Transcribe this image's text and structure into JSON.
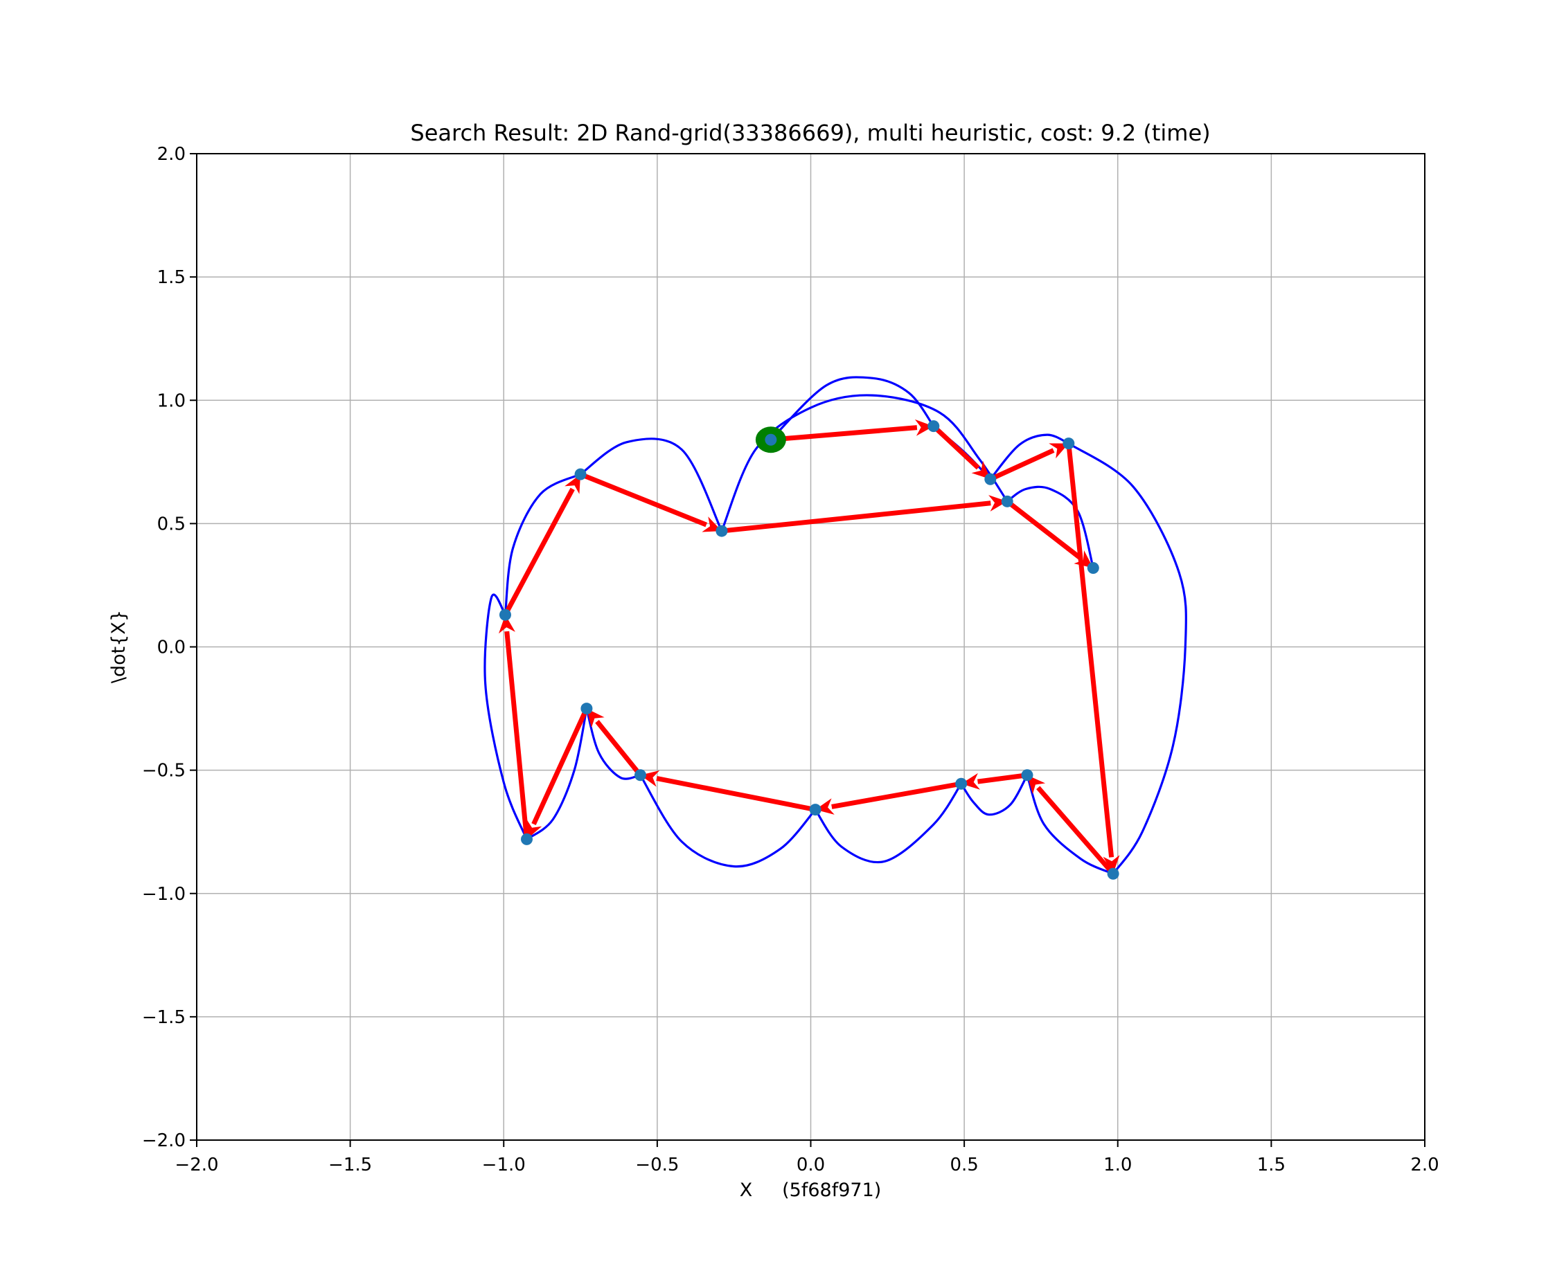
{
  "chart_data": {
    "type": "scatter",
    "title": "Search Result: 2D Rand-grid(33386669), multi heuristic, cost: 9.2 (time)",
    "xlabel": "X     (5f68f971)",
    "ylabel": "\\dot{X}",
    "xlim": [
      -2.0,
      2.0
    ],
    "ylim": [
      -2.0,
      2.0
    ],
    "xticks": [
      -2.0,
      -1.5,
      -1.0,
      -0.5,
      0.0,
      0.5,
      1.0,
      1.5,
      2.0
    ],
    "yticks": [
      -2.0,
      -1.5,
      -1.0,
      -0.5,
      0.0,
      0.5,
      1.0,
      1.5,
      2.0
    ],
    "xtick_labels": [
      "−2.0",
      "−1.5",
      "−1.0",
      "−0.5",
      "0.0",
      "0.5",
      "1.0",
      "1.5",
      "2.0"
    ],
    "ytick_labels": [
      "−2.0",
      "−1.5",
      "−1.0",
      "−0.5",
      "0.0",
      "0.5",
      "1.0",
      "1.5",
      "2.0"
    ],
    "grid": true,
    "colors": {
      "nodes": "#1f77b4",
      "edges": "#ff0000",
      "trajectories": "#0000ff",
      "start": "#008000",
      "grid": "#b0b0b0"
    },
    "start": {
      "x": -0.13,
      "y": 0.84
    },
    "nodes": [
      {
        "x": -0.13,
        "y": 0.84
      },
      {
        "x": 0.4,
        "y": 0.895
      },
      {
        "x": 0.585,
        "y": 0.68
      },
      {
        "x": 0.84,
        "y": 0.825
      },
      {
        "x": 0.64,
        "y": 0.59
      },
      {
        "x": 0.92,
        "y": 0.32
      },
      {
        "x": 0.985,
        "y": -0.92
      },
      {
        "x": 0.705,
        "y": -0.52
      },
      {
        "x": 0.49,
        "y": -0.555
      },
      {
        "x": 0.015,
        "y": -0.66
      },
      {
        "x": -0.555,
        "y": -0.52
      },
      {
        "x": -0.73,
        "y": -0.25
      },
      {
        "x": -0.925,
        "y": -0.78
      },
      {
        "x": -0.995,
        "y": 0.13
      },
      {
        "x": -0.75,
        "y": 0.7
      },
      {
        "x": -0.29,
        "y": 0.47
      }
    ],
    "edges": [
      {
        "from": [
          -0.13,
          0.84
        ],
        "to": [
          0.4,
          0.895
        ]
      },
      {
        "from": [
          0.4,
          0.895
        ],
        "to": [
          0.585,
          0.68
        ]
      },
      {
        "from": [
          0.585,
          0.68
        ],
        "to": [
          0.84,
          0.825
        ]
      },
      {
        "from": [
          0.84,
          0.825
        ],
        "to": [
          0.985,
          -0.92
        ]
      },
      {
        "from": [
          0.985,
          -0.92
        ],
        "to": [
          0.705,
          -0.52
        ]
      },
      {
        "from": [
          0.705,
          -0.52
        ],
        "to": [
          0.49,
          -0.555
        ]
      },
      {
        "from": [
          0.49,
          -0.555
        ],
        "to": [
          0.015,
          -0.66
        ]
      },
      {
        "from": [
          0.015,
          -0.66
        ],
        "to": [
          -0.555,
          -0.52
        ]
      },
      {
        "from": [
          -0.555,
          -0.52
        ],
        "to": [
          -0.73,
          -0.25
        ]
      },
      {
        "from": [
          -0.73,
          -0.25
        ],
        "to": [
          -0.925,
          -0.78
        ]
      },
      {
        "from": [
          -0.925,
          -0.78
        ],
        "to": [
          -0.995,
          0.13
        ]
      },
      {
        "from": [
          -0.995,
          0.13
        ],
        "to": [
          -0.75,
          0.7
        ]
      },
      {
        "from": [
          -0.75,
          0.7
        ],
        "to": [
          -0.29,
          0.47
        ]
      },
      {
        "from": [
          -0.29,
          0.47
        ],
        "to": [
          0.64,
          0.59
        ]
      },
      {
        "from": [
          0.64,
          0.59
        ],
        "to": [
          0.92,
          0.32
        ]
      }
    ],
    "trajectories": [
      [
        [
          -0.13,
          0.84
        ],
        [
          0.05,
          1.06
        ],
        [
          0.2,
          1.09
        ],
        [
          0.32,
          1.03
        ],
        [
          0.4,
          0.895
        ]
      ],
      [
        [
          0.4,
          0.895
        ],
        [
          0.5,
          0.79
        ],
        [
          0.585,
          0.68
        ]
      ],
      [
        [
          0.585,
          0.68
        ],
        [
          0.68,
          0.82
        ],
        [
          0.77,
          0.86
        ],
        [
          0.84,
          0.825
        ]
      ],
      [
        [
          0.84,
          0.825
        ],
        [
          1.05,
          0.65
        ],
        [
          1.2,
          0.3
        ],
        [
          1.22,
          0.0
        ],
        [
          1.18,
          -0.4
        ],
        [
          1.08,
          -0.75
        ],
        [
          0.985,
          -0.92
        ]
      ],
      [
        [
          0.985,
          -0.92
        ],
        [
          0.88,
          -0.86
        ],
        [
          0.76,
          -0.72
        ],
        [
          0.705,
          -0.52
        ]
      ],
      [
        [
          0.705,
          -0.52
        ],
        [
          0.65,
          -0.64
        ],
        [
          0.58,
          -0.68
        ],
        [
          0.53,
          -0.63
        ],
        [
          0.49,
          -0.555
        ]
      ],
      [
        [
          0.49,
          -0.555
        ],
        [
          0.4,
          -0.72
        ],
        [
          0.24,
          -0.87
        ],
        [
          0.1,
          -0.81
        ],
        [
          0.015,
          -0.66
        ]
      ],
      [
        [
          0.015,
          -0.66
        ],
        [
          -0.1,
          -0.82
        ],
        [
          -0.25,
          -0.89
        ],
        [
          -0.42,
          -0.79
        ],
        [
          -0.555,
          -0.52
        ]
      ],
      [
        [
          -0.555,
          -0.52
        ],
        [
          -0.62,
          -0.53
        ],
        [
          -0.69,
          -0.43
        ],
        [
          -0.73,
          -0.25
        ]
      ],
      [
        [
          -0.73,
          -0.25
        ],
        [
          -0.77,
          -0.5
        ],
        [
          -0.84,
          -0.7
        ],
        [
          -0.925,
          -0.78
        ]
      ],
      [
        [
          -0.925,
          -0.78
        ],
        [
          -1.0,
          -0.55
        ],
        [
          -1.06,
          -0.15
        ],
        [
          -1.04,
          0.2
        ],
        [
          -0.995,
          0.13
        ]
      ],
      [
        [
          -0.995,
          0.13
        ],
        [
          -0.97,
          0.4
        ],
        [
          -0.88,
          0.62
        ],
        [
          -0.75,
          0.7
        ]
      ],
      [
        [
          -0.75,
          0.7
        ],
        [
          -0.6,
          0.83
        ],
        [
          -0.42,
          0.8
        ],
        [
          -0.29,
          0.47
        ]
      ],
      [
        [
          -0.29,
          0.47
        ],
        [
          -0.18,
          0.8
        ],
        [
          0.0,
          0.97
        ],
        [
          0.2,
          1.02
        ],
        [
          0.42,
          0.95
        ],
        [
          0.55,
          0.76
        ],
        [
          0.64,
          0.59
        ]
      ],
      [
        [
          0.64,
          0.59
        ],
        [
          0.7,
          0.64
        ],
        [
          0.78,
          0.64
        ],
        [
          0.87,
          0.55
        ],
        [
          0.92,
          0.32
        ]
      ]
    ]
  }
}
